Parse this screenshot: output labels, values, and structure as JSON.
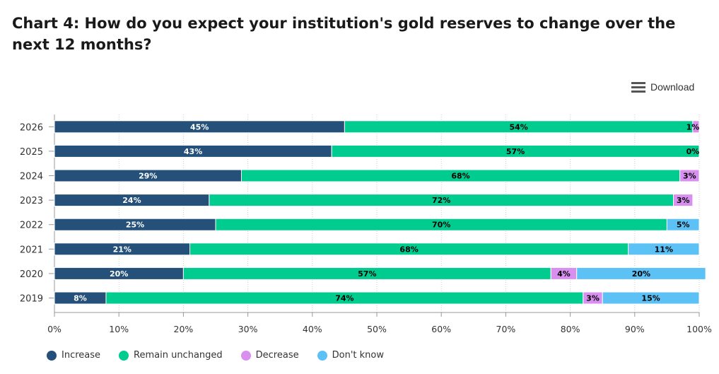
{
  "header": {
    "title": "Chart 4: How do you expect your institution's gold reserves to change over the next 12 months?",
    "download_label": "Download",
    "download_icon": "menu-icon"
  },
  "chart_data": {
    "type": "bar",
    "orientation": "horizontal",
    "stacked": true,
    "categories": [
      "2026",
      "2025",
      "2024",
      "2023",
      "2022",
      "2021",
      "2020",
      "2019"
    ],
    "series": [
      {
        "name": "Increase",
        "color": "#24507a",
        "label_color": "#ffffff",
        "values": [
          45,
          43,
          29,
          24,
          25,
          21,
          20,
          8
        ]
      },
      {
        "name": "Remain unchanged",
        "color": "#00cc8f",
        "label_color": "#000000",
        "values": [
          54,
          57,
          68,
          72,
          70,
          68,
          57,
          74
        ]
      },
      {
        "name": "Decrease",
        "color": "#d88ff0",
        "label_color": "#000000",
        "values": [
          1,
          0,
          3,
          3,
          0,
          0,
          4,
          3
        ]
      },
      {
        "name": "Don't know",
        "color": "#5cc1f5",
        "label_color": "#000000",
        "values": [
          0,
          0,
          0,
          0,
          5,
          11,
          20,
          15
        ]
      }
    ],
    "data_labels": {
      "Increase": [
        "45%",
        "43%",
        "29%",
        "24%",
        "25%",
        "21%",
        "20%",
        "8%"
      ],
      "Remain unchanged": [
        "54%",
        "57%",
        "68%",
        "72%",
        "70%",
        "68%",
        "57%",
        "74%"
      ],
      "Decrease": [
        "1%",
        "0%",
        "3%",
        "3%",
        "",
        "",
        "4%",
        "3%"
      ],
      "Don't know": [
        "",
        "",
        "",
        "",
        "5%",
        "11%",
        "20%",
        "15%"
      ]
    },
    "xlim": [
      0,
      100
    ],
    "x_ticks": [
      "0%",
      "10%",
      "20%",
      "30%",
      "40%",
      "50%",
      "60%",
      "70%",
      "80%",
      "90%",
      "100%"
    ],
    "grid": "vertical dotted",
    "legend_position": "bottom-left"
  }
}
